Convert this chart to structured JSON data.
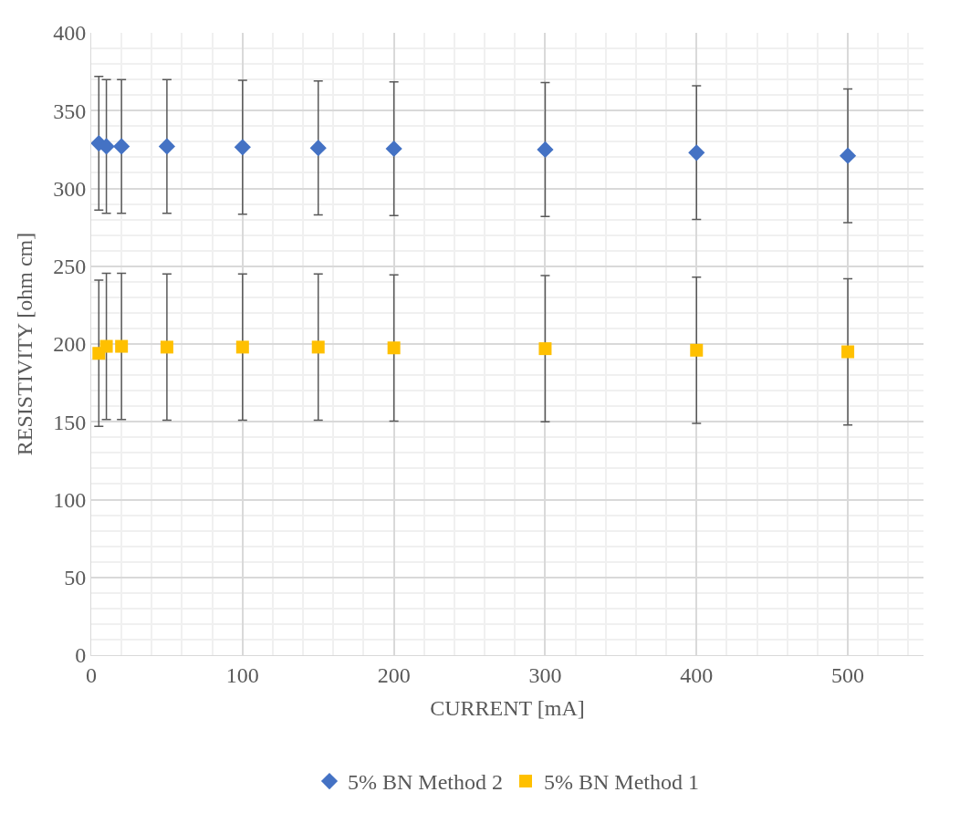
{
  "chart_data": {
    "type": "scatter",
    "xlabel": "CURRENT [mA]",
    "ylabel": "RESISTIVITY [ohm cm]",
    "x": [
      5,
      10,
      20,
      50,
      100,
      150,
      200,
      300,
      400,
      500
    ],
    "series": [
      {
        "name": "5% BN Method 2",
        "color": "#4472c4",
        "marker": "diamond",
        "values": [
          329,
          327,
          327,
          327,
          326.5,
          326,
          325.5,
          325,
          323,
          321
        ],
        "errors": [
          43,
          43,
          43,
          43,
          43,
          43,
          43,
          43,
          43,
          43
        ]
      },
      {
        "name": "5% BN Method 1",
        "color": "#ffc000",
        "marker": "square",
        "values": [
          194,
          198.5,
          198.5,
          198,
          198,
          198,
          197.5,
          197,
          196,
          195
        ],
        "errors": [
          47,
          47,
          47,
          47,
          47,
          47,
          47,
          47,
          47,
          47
        ]
      }
    ],
    "xlim": [
      0,
      550
    ],
    "xticks": [
      0,
      100,
      200,
      300,
      400,
      500
    ],
    "ylim": [
      0,
      400
    ],
    "yticks": [
      0,
      50,
      100,
      150,
      200,
      250,
      300,
      350,
      400
    ],
    "grid": true,
    "legend": "bottom"
  }
}
